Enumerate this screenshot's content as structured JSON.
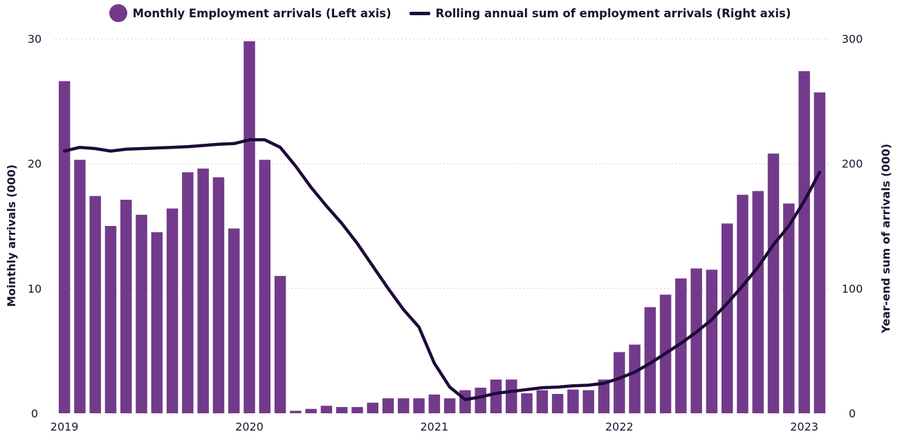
{
  "legend": {
    "bars_label": "Monthly  Employment arrivals (Left axis)",
    "line_label": "Rolling annual sum of employment arrivals (Right axis)"
  },
  "colors": {
    "bar": "#733a8c",
    "line": "#1e0a38",
    "grid": "#c8c8c8",
    "text": "#1e1130"
  },
  "chart_data": {
    "type": "bar",
    "title": "",
    "xlabel": "",
    "ylabel": "Mointhly arrivals (000)",
    "y2label": "Year-end sum of arrivals (000)",
    "ylim": [
      0,
      30
    ],
    "y2lim": [
      0,
      300
    ],
    "yticks": [
      "0",
      "10",
      "20",
      "30"
    ],
    "y2ticks": [
      "0",
      "100",
      "200",
      "300"
    ],
    "xtick_labels": [
      {
        "label": "2019",
        "index": 0
      },
      {
        "label": "2020",
        "index": 12
      },
      {
        "label": "2021",
        "index": 24
      },
      {
        "label": "2022",
        "index": 36
      },
      {
        "label": "2023",
        "index": 48
      }
    ],
    "grid": true,
    "legend_position": "top",
    "categories": [
      "Jan 2019",
      "Feb 2019",
      "Mar 2019",
      "Apr 2019",
      "May 2019",
      "Jun 2019",
      "Jul 2019",
      "Aug 2019",
      "Sep 2019",
      "Oct 2019",
      "Nov 2019",
      "Dec 2019",
      "Jan 2020",
      "Feb 2020",
      "Mar 2020",
      "Apr 2020",
      "May 2020",
      "Jun 2020",
      "Jul 2020",
      "Aug 2020",
      "Sep 2020",
      "Oct 2020",
      "Nov 2020",
      "Dec 2020",
      "Jan 2021",
      "Feb 2021",
      "Mar 2021",
      "Apr 2021",
      "May 2021",
      "Jun 2021",
      "Jul 2021",
      "Aug 2021",
      "Sep 2021",
      "Oct 2021",
      "Nov 2021",
      "Dec 2021",
      "Jan 2022",
      "Feb 2022",
      "Mar 2022",
      "Apr 2022",
      "May 2022",
      "Jun 2022",
      "Jul 2022",
      "Aug 2022",
      "Sep 2022",
      "Oct 2022",
      "Nov 2022",
      "Dec 2022",
      "Jan 2023",
      "Feb 2023"
    ],
    "series": [
      {
        "name": "Monthly  Employment arrivals (Left axis)",
        "type": "bar",
        "axis": "left",
        "values": [
          26.6,
          20.3,
          17.4,
          15.0,
          17.1,
          15.9,
          14.5,
          16.4,
          19.3,
          19.6,
          18.9,
          14.8,
          29.8,
          20.3,
          11.0,
          0.2,
          0.35,
          0.6,
          0.5,
          0.5,
          0.85,
          1.2,
          1.2,
          1.2,
          1.5,
          1.2,
          1.85,
          2.05,
          2.7,
          2.7,
          1.6,
          1.85,
          1.55,
          1.9,
          1.85,
          2.7,
          4.9,
          5.5,
          8.5,
          9.5,
          10.8,
          11.6,
          11.5,
          15.2,
          17.5,
          17.8,
          20.8,
          16.8,
          27.4,
          25.7
        ]
      },
      {
        "name": "Rolling annual sum of employment arrivals (Right axis)",
        "type": "line",
        "axis": "right",
        "values": [
          210,
          213,
          212,
          210,
          211.5,
          212,
          212.5,
          213,
          213.5,
          214.5,
          215.5,
          216,
          219,
          219,
          213,
          198,
          181,
          166,
          152,
          136,
          118,
          100,
          83,
          69,
          40,
          21,
          11,
          13,
          16,
          17.5,
          19,
          20.5,
          21,
          22,
          22.5,
          24,
          28,
          33,
          40,
          48,
          56,
          65,
          75,
          88,
          102,
          117,
          135,
          150,
          170,
          193
        ]
      }
    ]
  }
}
